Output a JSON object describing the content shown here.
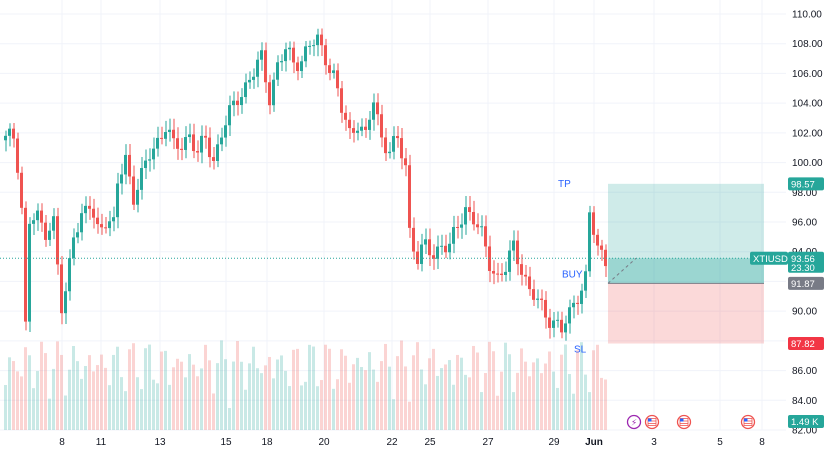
{
  "symbol": "XTIUSD",
  "colors": {
    "up": "#26a69a",
    "down": "#ef5350",
    "tp_zone": "#b2dfdb",
    "sl_zone": "#f8bbd0",
    "tp_tag": "#26a69a",
    "sl_tag": "#f23645",
    "stop_tag": "#787b86",
    "label_blue": "#2962ff",
    "price_line": "#26a69a"
  },
  "position": {
    "tp_label": "TP",
    "buy_label": "BUY",
    "sl_label": "SL",
    "tp_price": "98.57",
    "entry_price": "91.87",
    "sl_price": "87.82"
  },
  "price_tag": {
    "symbol": "XTIUSD",
    "price": "93.56",
    "change": "23.30"
  },
  "volume_tag": "1.49 K",
  "event_icons": [
    {
      "name": "lightning-icon",
      "glyph": "⚡"
    },
    {
      "name": "us-flag-icon",
      "glyph": ""
    },
    {
      "name": "us-flag-icon",
      "glyph": ""
    },
    {
      "name": "us-flag-icon",
      "glyph": ""
    }
  ],
  "chart_data": {
    "type": "candlestick",
    "y_axis": {
      "ticks": [
        "110.00",
        "108.00",
        "106.00",
        "104.00",
        "102.00",
        "100.00",
        "98.00",
        "96.00",
        "94.00",
        "92.00",
        "90.00",
        "88.00",
        "86.00",
        "84.00",
        "82.00"
      ],
      "range": [
        82,
        110
      ]
    },
    "x_axis": {
      "ticks": [
        "8",
        "11",
        "13",
        "15",
        "18",
        "20",
        "22",
        "25",
        "27",
        "29",
        "Jun",
        "3",
        "5",
        "8"
      ]
    },
    "price_anchors": [
      [
        0,
        101.5
      ],
      [
        2,
        101.8
      ],
      [
        3,
        100
      ],
      [
        4,
        97
      ],
      [
        5,
        89
      ],
      [
        6,
        96
      ],
      [
        8,
        96.2
      ],
      [
        10,
        95.5
      ],
      [
        12,
        96
      ],
      [
        13,
        93
      ],
      [
        14,
        90
      ],
      [
        15,
        91
      ],
      [
        17,
        95.5
      ],
      [
        19,
        96.3
      ],
      [
        21,
        97
      ],
      [
        23,
        95.5
      ],
      [
        25,
        96.3
      ],
      [
        27,
        95.7
      ],
      [
        28,
        98.5
      ],
      [
        30,
        100.3
      ],
      [
        32,
        97.8
      ],
      [
        34,
        99
      ],
      [
        36,
        100.5
      ],
      [
        38,
        101.5
      ],
      [
        40,
        102.5
      ],
      [
        42,
        101
      ],
      [
        44,
        101.2
      ],
      [
        46,
        102
      ],
      [
        48,
        100.5
      ],
      [
        50,
        101.6
      ],
      [
        52,
        100.2
      ],
      [
        54,
        102
      ],
      [
        56,
        103.2
      ],
      [
        58,
        104.4
      ],
      [
        60,
        105.2
      ],
      [
        62,
        106
      ],
      [
        64,
        107
      ],
      [
        66,
        104.5
      ],
      [
        68,
        106.5
      ],
      [
        70,
        107.5
      ],
      [
        72,
        106.8
      ],
      [
        74,
        107
      ],
      [
        76,
        107.8
      ],
      [
        78,
        108.2
      ],
      [
        80,
        107.2
      ],
      [
        82,
        105.8
      ],
      [
        84,
        103.5
      ],
      [
        86,
        102
      ],
      [
        88,
        102.8
      ],
      [
        90,
        101.6
      ],
      [
        92,
        104.2
      ],
      [
        94,
        101.8
      ],
      [
        96,
        100.8
      ],
      [
        98,
        101.4
      ],
      [
        100,
        99.8
      ],
      [
        101,
        95.5
      ],
      [
        103,
        93.5
      ],
      [
        105,
        94.3
      ],
      [
        107,
        93.8
      ],
      [
        109,
        94.6
      ],
      [
        111,
        94.2
      ],
      [
        113,
        95.7
      ],
      [
        115,
        97
      ],
      [
        117,
        96.2
      ],
      [
        119,
        95
      ],
      [
        121,
        93.3
      ],
      [
        123,
        92.3
      ],
      [
        125,
        92.8
      ],
      [
        127,
        94.3
      ],
      [
        129,
        93
      ],
      [
        131,
        91.3
      ],
      [
        133,
        90.6
      ],
      [
        135,
        89.8
      ],
      [
        137,
        89.4
      ],
      [
        139,
        88.6
      ],
      [
        141,
        89.8
      ],
      [
        143,
        91.2
      ],
      [
        145,
        92.2
      ],
      [
        146,
        96.4
      ],
      [
        148,
        94.2
      ],
      [
        150,
        93.56
      ]
    ]
  }
}
